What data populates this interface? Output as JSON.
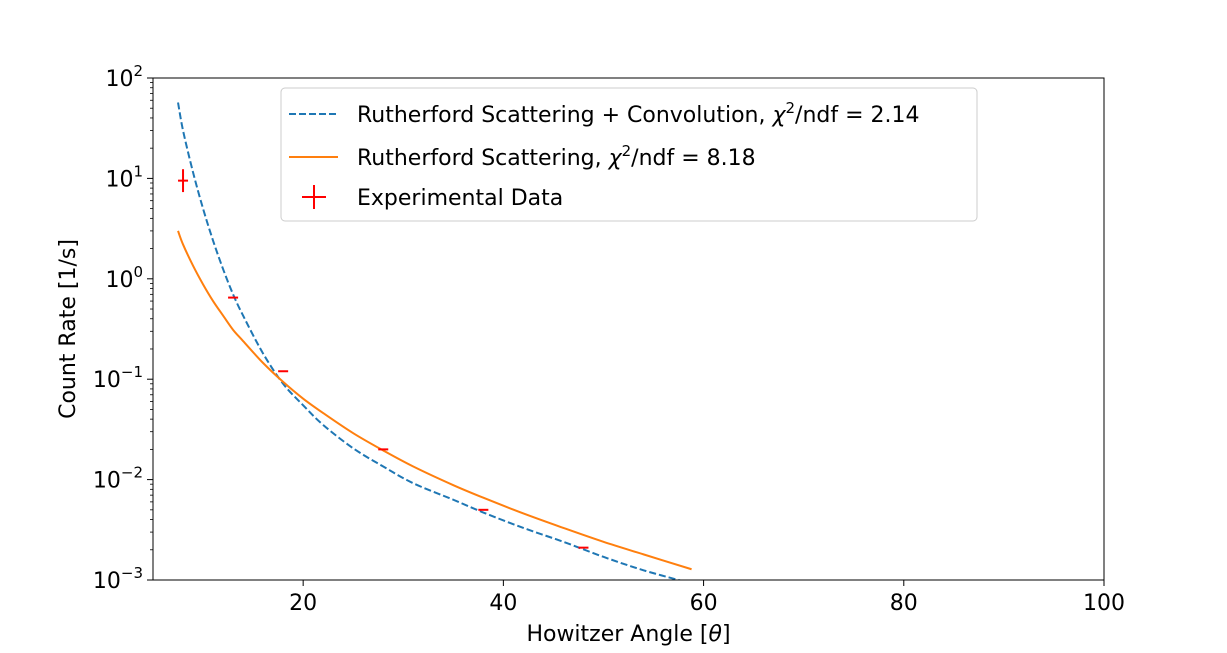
{
  "chart_data": {
    "type": "line",
    "xlabel": "Howitzer Angle [θ]",
    "ylabel": "Count Rate [1/s]",
    "xlim": [
      5,
      100
    ],
    "ylim": [
      0.001,
      100
    ],
    "yscale": "log",
    "grid": false,
    "legend_position": "top-center",
    "x_ticks": [
      {
        "value": 20,
        "label": "20"
      },
      {
        "value": 40,
        "label": "40"
      },
      {
        "value": 60,
        "label": "60"
      },
      {
        "value": 80,
        "label": "80"
      },
      {
        "value": 100,
        "label": "100"
      }
    ],
    "y_ticks": [
      {
        "value": 0.001,
        "base": "10",
        "exp": "−3"
      },
      {
        "value": 0.01,
        "base": "10",
        "exp": "−2"
      },
      {
        "value": 0.1,
        "base": "10",
        "exp": "−1"
      },
      {
        "value": 1,
        "base": "10",
        "exp": "0"
      },
      {
        "value": 10,
        "base": "10",
        "exp": "1"
      },
      {
        "value": 100,
        "base": "10",
        "exp": "2"
      }
    ],
    "series": [
      {
        "name": "Rutherford Scattering + Convolution, χ²/ndf = 2.14",
        "legend_main": "Rutherford Scattering + Convolution, ",
        "legend_chi": "χ",
        "legend_sup": "2",
        "legend_tail": "/ndf = 2.14",
        "style": "dashed",
        "color": "#1f77b4",
        "x": [
          7.5,
          8,
          9,
          10,
          11,
          12,
          13,
          14,
          16,
          18,
          20,
          22,
          25,
          28,
          31,
          35,
          38,
          42,
          46,
          50,
          54,
          58.5
        ],
        "y": [
          57,
          30,
          11.5,
          5.0,
          2.4,
          1.25,
          0.7,
          0.43,
          0.18,
          0.09,
          0.055,
          0.035,
          0.0205,
          0.0135,
          0.0092,
          0.0063,
          0.0047,
          0.0033,
          0.0024,
          0.0017,
          0.00125,
          0.00094
        ]
      },
      {
        "name": "Rutherford Scattering, χ²/ndf = 8.18",
        "legend_main": "Rutherford Scattering, ",
        "legend_chi": "χ",
        "legend_sup": "2",
        "legend_tail": "/ndf = 8.18",
        "style": "solid",
        "color": "#ff7f0e",
        "x": [
          7.5,
          8,
          9,
          10,
          11,
          12,
          13,
          14,
          16,
          18,
          20,
          22,
          25,
          28,
          31,
          35,
          38,
          42,
          46,
          50,
          54,
          58.8
        ],
        "y": [
          3.0,
          2.2,
          1.35,
          0.88,
          0.6,
          0.43,
          0.31,
          0.24,
          0.145,
          0.094,
          0.064,
          0.046,
          0.029,
          0.0195,
          0.0135,
          0.0088,
          0.0066,
          0.0046,
          0.0033,
          0.0024,
          0.0018,
          0.00128
        ]
      }
    ],
    "points": {
      "name": "Experimental Data",
      "color": "#ff0000",
      "x": [
        8,
        13,
        18,
        28,
        38,
        48
      ],
      "y": [
        9.5,
        0.65,
        0.12,
        0.02,
        0.005,
        0.0021
      ],
      "xerr": [
        0.5,
        0.5,
        0.5,
        0.5,
        0.5,
        0.5
      ],
      "yerr_factor": [
        1.3,
        1.0,
        1.0,
        1.0,
        1.0,
        1.0
      ]
    }
  }
}
